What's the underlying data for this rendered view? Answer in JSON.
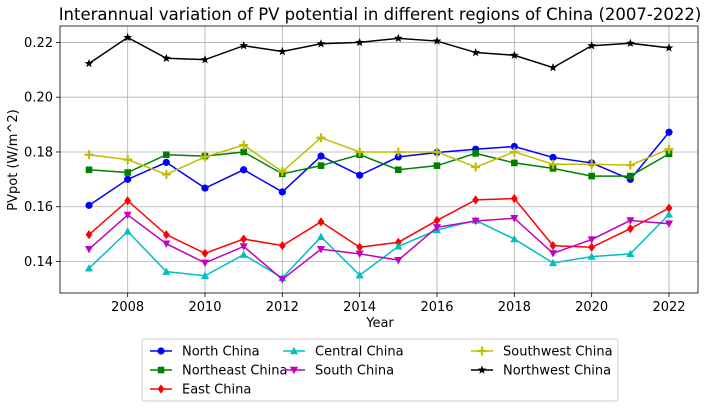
{
  "chart_data": {
    "type": "line",
    "title": "Interannual variation of PV potential in different regions of China (2007-2022)",
    "xlabel": "Year",
    "ylabel": "PVpot (W/m^2)",
    "x": [
      2007,
      2008,
      2009,
      2010,
      2011,
      2012,
      2013,
      2014,
      2015,
      2016,
      2017,
      2018,
      2019,
      2020,
      2021,
      2022
    ],
    "xlim": [
      2006.25,
      2022.75
    ],
    "ylim": [
      0.1285,
      0.226
    ],
    "xticks": [
      2008,
      2010,
      2012,
      2014,
      2016,
      2018,
      2020,
      2022
    ],
    "yticks": [
      0.14,
      0.16,
      0.18,
      0.2,
      0.22
    ],
    "ytick_labels": [
      "0.14",
      "0.16",
      "0.18",
      "0.20",
      "0.22"
    ],
    "grid": true,
    "legend_position": "bottom-outside",
    "legend_columns": 3,
    "series": [
      {
        "name": "North China",
        "color": "#0000ff",
        "marker": "circle",
        "values": [
          0.1605,
          0.17,
          0.1762,
          0.1668,
          0.1735,
          0.1654,
          0.1785,
          0.1715,
          0.1782,
          0.1798,
          0.181,
          0.182,
          0.178,
          0.176,
          0.17,
          0.1872
        ]
      },
      {
        "name": "Northeast China",
        "color": "#008000",
        "marker": "square",
        "values": [
          0.1735,
          0.1725,
          0.179,
          0.1785,
          0.18,
          0.172,
          0.175,
          0.179,
          0.1735,
          0.175,
          0.1795,
          0.176,
          0.174,
          0.1712,
          0.1712,
          0.1793
        ]
      },
      {
        "name": "East China",
        "color": "#ff0000",
        "marker": "diamond",
        "values": [
          0.1498,
          0.1622,
          0.1498,
          0.143,
          0.1482,
          0.1458,
          0.1545,
          0.1452,
          0.147,
          0.155,
          0.1625,
          0.163,
          0.1458,
          0.1452,
          0.152,
          0.1595
        ]
      },
      {
        "name": "Central China",
        "color": "#00bfbf",
        "marker": "triangle-up",
        "values": [
          0.1375,
          0.151,
          0.1363,
          0.1348,
          0.1425,
          0.134,
          0.149,
          0.135,
          0.1455,
          0.1515,
          0.155,
          0.1482,
          0.1395,
          0.1418,
          0.1428,
          0.1572
        ]
      },
      {
        "name": "South China",
        "color": "#bf00bf",
        "marker": "triangle-down",
        "values": [
          0.1445,
          0.157,
          0.1465,
          0.1395,
          0.1455,
          0.1335,
          0.1445,
          0.1428,
          0.1405,
          0.1525,
          0.1548,
          0.1558,
          0.143,
          0.148,
          0.155,
          0.1538
        ]
      },
      {
        "name": "Southwest China",
        "color": "#bfbf00",
        "marker": "plus",
        "values": [
          0.179,
          0.1772,
          0.1718,
          0.1782,
          0.1825,
          0.1728,
          0.1852,
          0.18,
          0.18,
          0.18,
          0.1745,
          0.18,
          0.1755,
          0.1755,
          0.1752,
          0.181
        ]
      },
      {
        "name": "Northwest China",
        "color": "#000000",
        "marker": "star",
        "values": [
          0.2123,
          0.2218,
          0.2142,
          0.2137,
          0.2188,
          0.2167,
          0.2195,
          0.22,
          0.2215,
          0.2205,
          0.2163,
          0.2153,
          0.2108,
          0.2188,
          0.2197,
          0.218
        ]
      }
    ]
  }
}
